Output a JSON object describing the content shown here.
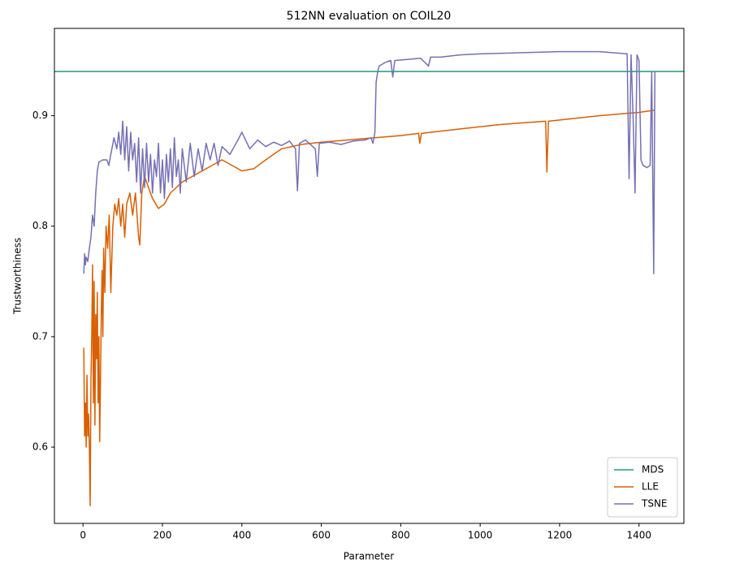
{
  "chart_data": {
    "type": "line",
    "title": "512NN evaluation on COIL20",
    "xlabel": "Parameter",
    "ylabel": "Trustworthiness",
    "xlim": [
      -72,
      1513
    ],
    "ylim": [
      0.531,
      0.979
    ],
    "xticks": [
      0,
      200,
      400,
      600,
      800,
      1000,
      1200,
      1400
    ],
    "yticks": [
      0.6,
      0.7,
      0.8,
      0.9
    ],
    "legend": "lower right",
    "series": [
      {
        "name": "MDS",
        "color": "#1b9e77",
        "value": 0.94
      },
      {
        "name": "LLE",
        "color": "#d95f02",
        "x": [
          2,
          4,
          6,
          8,
          10,
          12,
          14,
          16,
          18,
          20,
          22,
          24,
          26,
          28,
          30,
          32,
          34,
          36,
          38,
          40,
          42,
          44,
          46,
          48,
          50,
          52,
          55,
          58,
          62,
          66,
          70,
          75,
          80,
          85,
          90,
          95,
          100,
          105,
          110,
          118,
          125,
          132,
          140,
          143,
          148,
          155,
          165,
          175,
          190,
          205,
          220,
          250,
          300,
          350,
          400,
          430,
          460,
          500,
          550,
          600,
          700,
          800,
          845,
          848,
          852,
          950,
          1050,
          1165,
          1168,
          1172,
          1300,
          1400,
          1440
        ],
        "values": [
          0.69,
          0.61,
          0.64,
          0.6,
          0.665,
          0.61,
          0.63,
          0.6,
          0.547,
          0.66,
          0.7,
          0.765,
          0.64,
          0.75,
          0.62,
          0.72,
          0.68,
          0.74,
          0.64,
          0.7,
          0.605,
          0.66,
          0.72,
          0.76,
          0.7,
          0.78,
          0.74,
          0.8,
          0.78,
          0.81,
          0.74,
          0.8,
          0.82,
          0.81,
          0.825,
          0.8,
          0.82,
          0.79,
          0.82,
          0.83,
          0.81,
          0.83,
          0.79,
          0.783,
          0.83,
          0.845,
          0.835,
          0.825,
          0.816,
          0.82,
          0.83,
          0.84,
          0.85,
          0.86,
          0.85,
          0.852,
          0.86,
          0.87,
          0.874,
          0.876,
          0.879,
          0.882,
          0.884,
          0.875,
          0.884,
          0.888,
          0.892,
          0.895,
          0.849,
          0.895,
          0.9,
          0.903,
          0.905
        ]
      },
      {
        "name": "TSNE",
        "color": "#7570b3",
        "x": [
          2,
          4,
          6,
          8,
          12,
          16,
          20,
          24,
          28,
          32,
          36,
          40,
          50,
          60,
          65,
          70,
          78,
          85,
          90,
          95,
          100,
          105,
          110,
          115,
          120,
          125,
          130,
          135,
          140,
          145,
          150,
          155,
          160,
          165,
          170,
          175,
          180,
          185,
          190,
          195,
          200,
          205,
          210,
          215,
          220,
          225,
          230,
          235,
          240,
          245,
          250,
          260,
          270,
          280,
          290,
          300,
          310,
          320,
          330,
          340,
          350,
          370,
          390,
          400,
          420,
          440,
          460,
          480,
          500,
          520,
          535,
          540,
          545,
          560,
          585,
          590,
          595,
          620,
          650,
          680,
          710,
          725,
          730,
          735,
          738,
          742,
          746,
          760,
          775,
          780,
          785,
          820,
          850,
          870,
          875,
          900,
          950,
          1000,
          1100,
          1200,
          1300,
          1370,
          1375,
          1380,
          1385,
          1390,
          1395,
          1400,
          1405,
          1410,
          1420,
          1428,
          1432,
          1434,
          1437,
          1440
        ],
        "values": [
          0.757,
          0.775,
          0.765,
          0.772,
          0.768,
          0.78,
          0.79,
          0.81,
          0.8,
          0.83,
          0.85,
          0.858,
          0.86,
          0.86,
          0.855,
          0.865,
          0.88,
          0.87,
          0.885,
          0.865,
          0.895,
          0.86,
          0.89,
          0.85,
          0.885,
          0.86,
          0.875,
          0.84,
          0.88,
          0.83,
          0.87,
          0.835,
          0.875,
          0.84,
          0.865,
          0.83,
          0.86,
          0.845,
          0.875,
          0.83,
          0.86,
          0.825,
          0.865,
          0.84,
          0.87,
          0.835,
          0.88,
          0.845,
          0.86,
          0.83,
          0.87,
          0.84,
          0.875,
          0.845,
          0.87,
          0.85,
          0.875,
          0.86,
          0.875,
          0.855,
          0.872,
          0.865,
          0.878,
          0.885,
          0.87,
          0.878,
          0.872,
          0.876,
          0.873,
          0.877,
          0.87,
          0.832,
          0.875,
          0.878,
          0.87,
          0.845,
          0.875,
          0.876,
          0.874,
          0.877,
          0.878,
          0.88,
          0.875,
          0.885,
          0.93,
          0.94,
          0.945,
          0.948,
          0.95,
          0.935,
          0.95,
          0.951,
          0.952,
          0.945,
          0.953,
          0.953,
          0.955,
          0.956,
          0.957,
          0.958,
          0.958,
          0.956,
          0.843,
          0.955,
          0.9,
          0.83,
          0.955,
          0.95,
          0.86,
          0.855,
          0.853,
          0.855,
          0.94,
          0.865,
          0.757,
          0.94
        ]
      }
    ]
  }
}
